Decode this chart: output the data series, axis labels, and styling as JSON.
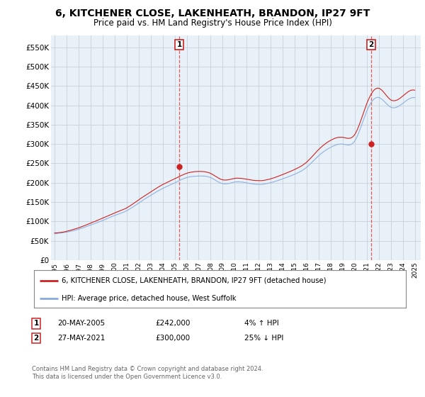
{
  "title": "6, KITCHENER CLOSE, LAKENHEATH, BRANDON, IP27 9FT",
  "subtitle": "Price paid vs. HM Land Registry's House Price Index (HPI)",
  "title_fontsize": 10,
  "subtitle_fontsize": 8.5,
  "ylabel_ticks": [
    "£0",
    "£50K",
    "£100K",
    "£150K",
    "£200K",
    "£250K",
    "£300K",
    "£350K",
    "£400K",
    "£450K",
    "£500K",
    "£550K"
  ],
  "ytick_values": [
    0,
    50000,
    100000,
    150000,
    200000,
    250000,
    300000,
    350000,
    400000,
    450000,
    500000,
    550000
  ],
  "ylim": [
    0,
    580000
  ],
  "xlim_start": 1994.7,
  "xlim_end": 2025.5,
  "hpi_color": "#88aadd",
  "price_color": "#cc2222",
  "background_color": "#ffffff",
  "chart_bg_color": "#e8f0f8",
  "grid_color": "#c8d0d8",
  "sale1_x": 2005.38,
  "sale1_y": 242000,
  "sale2_x": 2021.38,
  "sale2_y": 300000,
  "sale1_vline_color": "#dd4444",
  "sale2_vline_color": "#dd4444",
  "legend_label1": "6, KITCHENER CLOSE, LAKENHEATH, BRANDON, IP27 9FT (detached house)",
  "legend_label2": "HPI: Average price, detached house, West Suffolk",
  "annotation1_label": "1",
  "annotation1_date": "20-MAY-2005",
  "annotation1_price": "£242,000",
  "annotation1_hpi": "4% ↑ HPI",
  "annotation2_label": "2",
  "annotation2_date": "27-MAY-2021",
  "annotation2_price": "£300,000",
  "annotation2_hpi": "25% ↓ HPI",
  "footnote": "Contains HM Land Registry data © Crown copyright and database right 2024.\nThis data is licensed under the Open Government Licence v3.0."
}
